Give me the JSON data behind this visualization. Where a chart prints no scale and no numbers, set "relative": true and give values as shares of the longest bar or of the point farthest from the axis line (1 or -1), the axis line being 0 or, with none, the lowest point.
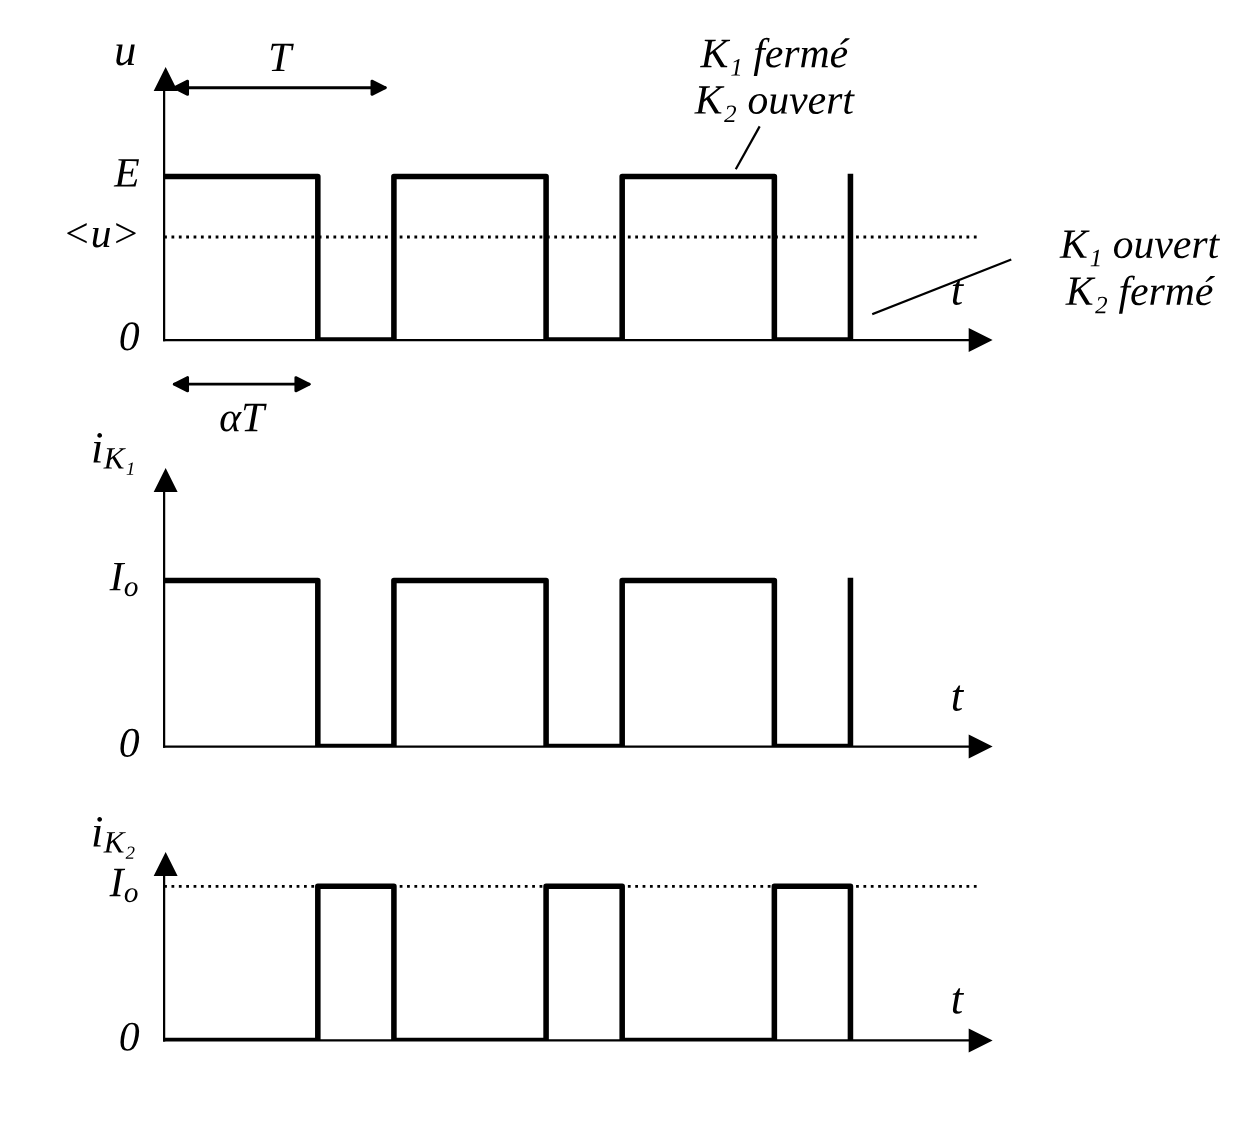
{
  "chart_data": [
    {
      "type": "step",
      "relative": true,
      "ylabel": "u",
      "xlabel": "t",
      "categories": [
        null,
        null,
        null,
        null,
        null,
        null,
        null,
        null,
        null,
        null
      ],
      "values": [
        1,
        1,
        0,
        1,
        1,
        0,
        1,
        1,
        0,
        1
      ],
      "color": "#000000",
      "ref_lines": [
        {
          "axis": "y",
          "value": 0.63,
          "label": "<u>",
          "line_style": "dotted",
          "color": "#000000"
        }
      ],
      "annotations": [
        "T",
        "αT",
        "K₁ fermé\nK₂ ouvert",
        "K₁ ouvert\nK₂ fermé",
        "E",
        "0"
      ]
    },
    {
      "type": "step",
      "relative": true,
      "ylabel": "i$_{K₁}$",
      "xlabel": "t",
      "categories": [
        null,
        null,
        null,
        null,
        null,
        null,
        null,
        null,
        null,
        null
      ],
      "values": [
        1,
        1,
        0,
        1,
        1,
        0,
        1,
        1,
        0,
        1
      ],
      "color": "#000000",
      "annotations": [
        "I$_{o}$",
        "0"
      ]
    },
    {
      "type": "step",
      "relative": true,
      "ylabel": "i$_{K₂}$",
      "xlabel": "t",
      "categories": [
        null,
        null,
        null,
        null,
        null,
        null,
        null,
        null,
        null,
        null
      ],
      "values": [
        0,
        0,
        1,
        0,
        0,
        1,
        0,
        0,
        1,
        0
      ],
      "color": "#000000",
      "ref_lines": [
        {
          "axis": "y",
          "value": 1,
          "line_style": "dotted",
          "color": "#000000"
        }
      ],
      "annotations": [
        "I$_{o}$",
        "0"
      ]
    }
  ]
}
